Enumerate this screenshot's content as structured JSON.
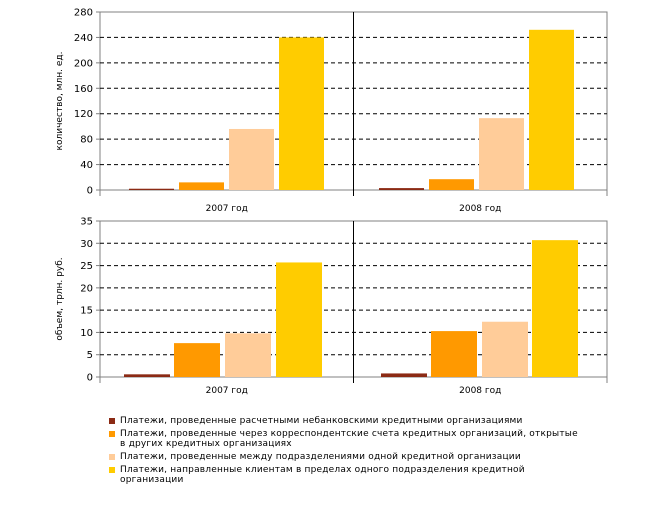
{
  "colors": {
    "series": [
      "#8B2A14",
      "#FF9900",
      "#FFCC99",
      "#FFCC00"
    ],
    "grid": "#000000",
    "axis": "#808080"
  },
  "legend": [
    "Платежи, проведенные расчетными небанковскими кредитными организациями",
    "Платежи, проведенные через корреспондентские счета кредитных организаций, открытые в других кредитных организациях",
    "Платежи, проведенные между подразделениями одной кредитной организации",
    "Платежи, направленные клиентам в пределах одного подразделения кредитной организации"
  ],
  "chart_data": [
    {
      "type": "bar",
      "ylabel": "количество, млн. ед.",
      "ylim": [
        0,
        280
      ],
      "yticks": [
        0,
        40,
        80,
        120,
        160,
        200,
        240,
        280
      ],
      "grid": true,
      "categories": [
        "2007 год",
        "2008 год"
      ],
      "series": [
        {
          "name": "Платежи, проведенные расчетными небанковскими кредитными организациями",
          "values": [
            2,
            3
          ]
        },
        {
          "name": "Платежи, проведенные через корреспондентские счета кредитных организаций, открытые в других кредитных организациях",
          "values": [
            12,
            17
          ]
        },
        {
          "name": "Платежи, проведенные между подразделениями одной кредитной организации",
          "values": [
            96,
            113
          ]
        },
        {
          "name": "Платежи, направленные клиентам в пределах одного подразделения кредитной организации",
          "values": [
            240,
            252
          ]
        }
      ]
    },
    {
      "type": "bar",
      "ylabel": "объем, трлн. руб.",
      "ylim": [
        0,
        35
      ],
      "yticks": [
        0,
        5,
        10,
        15,
        20,
        25,
        30,
        35
      ],
      "grid": true,
      "categories": [
        "2007 год",
        "2008 год"
      ],
      "series": [
        {
          "name": "Платежи, проведенные расчетными небанковскими кредитными организациями",
          "values": [
            0.6,
            0.8
          ]
        },
        {
          "name": "Платежи, проведенные через корреспондентские счета кредитных организаций, открытые в других кредитных организациях",
          "values": [
            7.6,
            10.3
          ]
        },
        {
          "name": "Платежи, проведенные между подразделениями одной кредитной организации",
          "values": [
            9.8,
            12.4
          ]
        },
        {
          "name": "Платежи, направленные клиентам в пределах одного подразделения кредитной организации",
          "values": [
            25.7,
            30.7
          ]
        }
      ]
    }
  ]
}
